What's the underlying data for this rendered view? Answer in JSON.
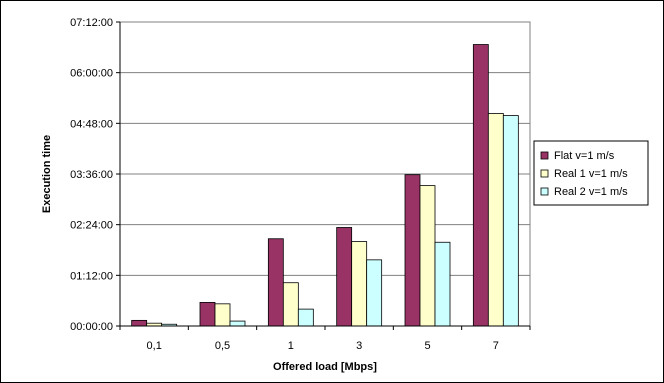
{
  "chart_data": {
    "type": "bar",
    "xlabel": "Offered load [Mbps]",
    "ylabel": "Execution time",
    "categories": [
      "0,1",
      "0,5",
      "1",
      "3",
      "5",
      "7"
    ],
    "y_unit": "seconds",
    "ylim": [
      0,
      25920
    ],
    "yticks": [
      {
        "value": 0,
        "label": "00:00:00"
      },
      {
        "value": 4320,
        "label": "01:12:00"
      },
      {
        "value": 8640,
        "label": "02:24:00"
      },
      {
        "value": 12960,
        "label": "03:36:00"
      },
      {
        "value": 17280,
        "label": "04:48:00"
      },
      {
        "value": 21600,
        "label": "06:00:00"
      },
      {
        "value": 25920,
        "label": "07:12:00"
      }
    ],
    "series": [
      {
        "name": "Flat v=1 m/s",
        "color": "#993366",
        "values": [
          480,
          2010,
          7440,
          8400,
          12900,
          24000
        ]
      },
      {
        "name": "Real 1 v=1 m/s",
        "color": "#ffffcc",
        "values": [
          240,
          1890,
          3690,
          7200,
          11970,
          18120
        ]
      },
      {
        "name": "Real 2 v=1 m/s",
        "color": "#ccffff",
        "values": [
          150,
          420,
          1440,
          5640,
          7140,
          17940
        ]
      }
    ],
    "grid": true,
    "legend": "right"
  }
}
